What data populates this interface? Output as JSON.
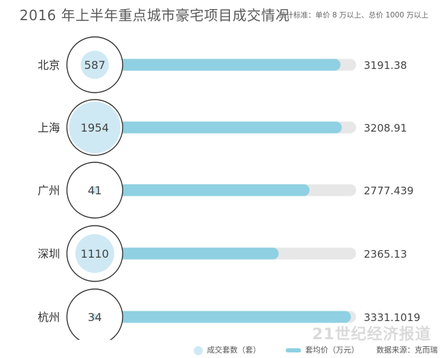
{
  "title": "2016 年上半年重点城市豪宅项目成交情况",
  "criteria": "统计标准：单价 8 万以上、总价 1000 万以上",
  "source": "数据来源：克而瑞",
  "watermark": "21世纪经济报道",
  "colors": {
    "bar": "#8fd0e2",
    "track": "#e7e7e7",
    "bubble": "#cfe9f4",
    "ring": "#333333"
  },
  "chart_data": {
    "type": "bar",
    "categories": [
      "北京",
      "上海",
      "广州",
      "深圳",
      "杭州"
    ],
    "series": [
      {
        "name": "成交套数（套）",
        "values": [
          587,
          1954,
          41,
          1110,
          34
        ]
      },
      {
        "name": "套均价（万元）",
        "values": [
          3191.38,
          3208.91,
          2777.439,
          2365.13,
          3331.1019
        ]
      }
    ],
    "value_labels": [
      "3191.38",
      "3208.91",
      "2777.439",
      "2365.13",
      "3331.1019"
    ],
    "count_labels": [
      "587",
      "1954",
      "41",
      "1110",
      "34"
    ],
    "xlim": [
      0,
      3400
    ],
    "legend": "bottom"
  }
}
